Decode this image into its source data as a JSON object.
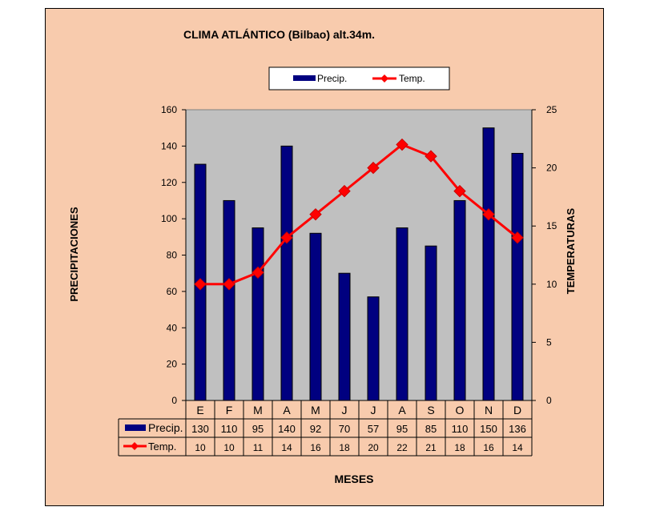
{
  "chart_data": {
    "type": "bar",
    "title": "CLIMA ATLÁNTICO (Bilbao) alt.34m.",
    "categories": [
      "E",
      "F",
      "M",
      "A",
      "M",
      "J",
      "J",
      "A",
      "S",
      "O",
      "N",
      "D"
    ],
    "series": [
      {
        "name": "Precip.",
        "type": "bar",
        "axis": "left",
        "color": "#000080",
        "values": [
          130,
          110,
          95,
          140,
          92,
          70,
          57,
          95,
          85,
          110,
          150,
          136
        ]
      },
      {
        "name": "Temp.",
        "type": "line",
        "axis": "right",
        "color": "#ff0000",
        "values": [
          10,
          10,
          11,
          14,
          16,
          18,
          20,
          22,
          21,
          18,
          16,
          14
        ]
      }
    ],
    "ylabel_left": "PRECIPITACIONES",
    "ylabel_right": "TEMPERATURAS",
    "xlabel": "MESES",
    "ylim_left": [
      0,
      160
    ],
    "ylim_right": [
      0,
      25
    ],
    "yticks_left": [
      0,
      20,
      40,
      60,
      80,
      100,
      120,
      140,
      160
    ],
    "yticks_right": [
      0,
      5,
      10,
      15,
      20,
      25
    ],
    "grid": false,
    "legend_placement": "top-center",
    "data_table": true,
    "colors": {
      "background": "#f8cbad",
      "plot_area": "#c0c0c0",
      "bar": "#000080",
      "line": "#ff0000",
      "marker": "#ff0000"
    }
  }
}
